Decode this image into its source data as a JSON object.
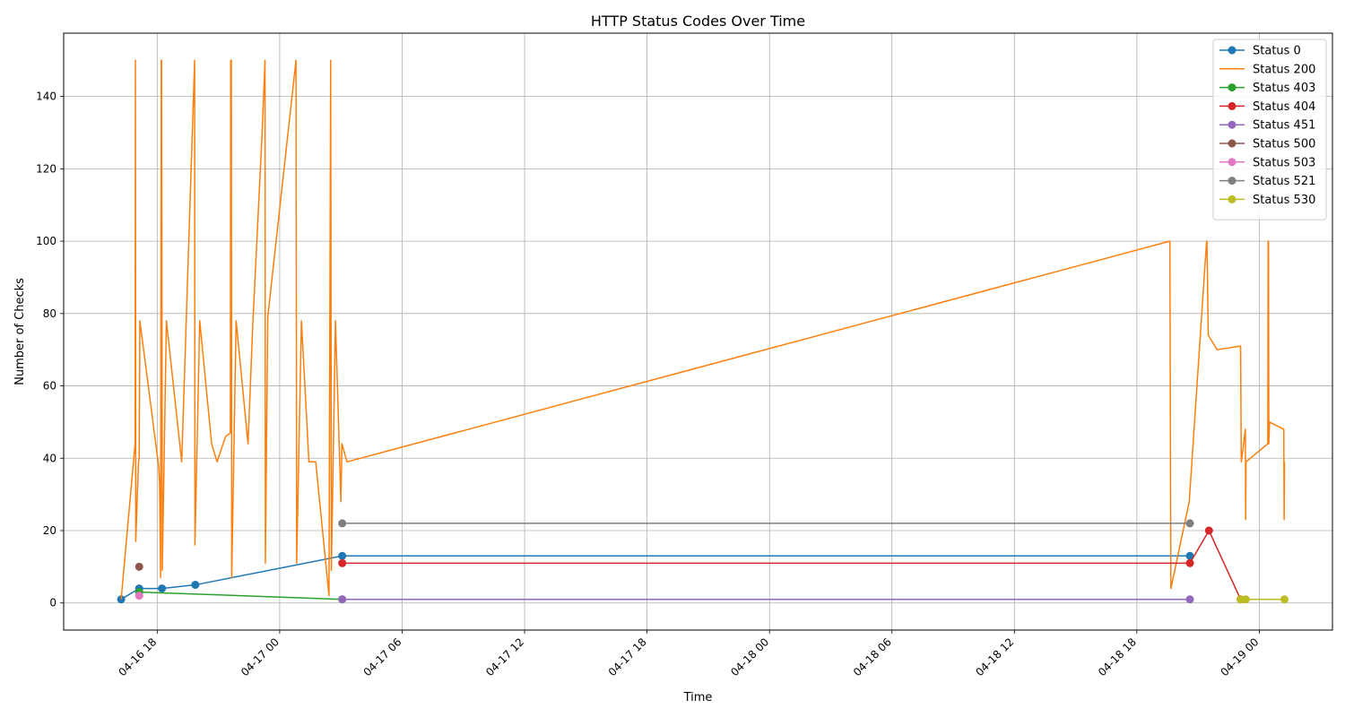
{
  "chart_data": {
    "type": "line",
    "title": "HTTP Status Codes Over Time",
    "xlabel": "Time",
    "ylabel": "Number of Checks",
    "grid": true,
    "legend_position": "top-right",
    "ylim": [
      -7.5,
      157.5
    ],
    "xlim": [
      "2025-04-16 13:25",
      "2025-04-19 03:35"
    ],
    "y_ticks": [
      0,
      20,
      40,
      60,
      80,
      100,
      120,
      140
    ],
    "x_ticks": [
      {
        "t": "2025-04-16 18:00",
        "label": "04-16 18"
      },
      {
        "t": "2025-04-17 00:00",
        "label": "04-17 00"
      },
      {
        "t": "2025-04-17 06:00",
        "label": "04-17 06"
      },
      {
        "t": "2025-04-17 12:00",
        "label": "04-17 12"
      },
      {
        "t": "2025-04-17 18:00",
        "label": "04-17 18"
      },
      {
        "t": "2025-04-18 00:00",
        "label": "04-18 00"
      },
      {
        "t": "2025-04-18 06:00",
        "label": "04-18 06"
      },
      {
        "t": "2025-04-18 12:00",
        "label": "04-18 12"
      },
      {
        "t": "2025-04-18 18:00",
        "label": "04-18 18"
      },
      {
        "t": "2025-04-19 00:00",
        "label": "04-19 00"
      }
    ],
    "series": [
      {
        "name": "Status 0",
        "color": "#1f77b4",
        "marker": true,
        "points": [
          [
            "2025-04-16 16:14",
            1
          ],
          [
            "2025-04-16 17:07",
            4
          ],
          [
            "2025-04-16 18:14",
            4
          ],
          [
            "2025-04-16 19:52",
            5
          ],
          [
            "2025-04-17 03:04",
            13
          ],
          [
            "2025-04-18 20:36",
            13
          ]
        ]
      },
      {
        "name": "Status 200",
        "color": "#ff7f0e",
        "marker": false,
        "points": [
          [
            "2025-04-16 16:14",
            1
          ],
          [
            "2025-04-16 16:55",
            44
          ],
          [
            "2025-04-16 16:56",
            150
          ],
          [
            "2025-04-16 16:57",
            17
          ],
          [
            "2025-04-16 17:05",
            39
          ],
          [
            "2025-04-16 17:07",
            40
          ],
          [
            "2025-04-16 17:09",
            78
          ],
          [
            "2025-04-16 18:04",
            38
          ],
          [
            "2025-04-16 18:07",
            33
          ],
          [
            "2025-04-16 18:10",
            7
          ],
          [
            "2025-04-16 18:12",
            150
          ],
          [
            "2025-04-16 18:13",
            150
          ],
          [
            "2025-04-16 18:15",
            9
          ],
          [
            "2025-04-16 18:27",
            78
          ],
          [
            "2025-04-16 19:12",
            39
          ],
          [
            "2025-04-16 19:50",
            150
          ],
          [
            "2025-04-16 19:51",
            16
          ],
          [
            "2025-04-16 20:05",
            78
          ],
          [
            "2025-04-16 20:40",
            44
          ],
          [
            "2025-04-16 20:56",
            39
          ],
          [
            "2025-04-16 21:21",
            46
          ],
          [
            "2025-04-16 21:35",
            47
          ],
          [
            "2025-04-16 21:36",
            150
          ],
          [
            "2025-04-16 21:38",
            150
          ],
          [
            "2025-04-16 21:39",
            7
          ],
          [
            "2025-04-16 21:52",
            78
          ],
          [
            "2025-04-16 22:27",
            44
          ],
          [
            "2025-04-16 22:41",
            77
          ],
          [
            "2025-04-16 23:08",
            129
          ],
          [
            "2025-04-16 23:17",
            150
          ],
          [
            "2025-04-16 23:18",
            11
          ],
          [
            "2025-04-16 23:25",
            79
          ],
          [
            "2025-04-17 00:48",
            150
          ],
          [
            "2025-04-17 00:50",
            11
          ],
          [
            "2025-04-17 01:04",
            78
          ],
          [
            "2025-04-17 01:26",
            39
          ],
          [
            "2025-04-17 01:46",
            39
          ],
          [
            "2025-04-17 02:25",
            2
          ],
          [
            "2025-04-17 02:30",
            150
          ],
          [
            "2025-04-17 02:32",
            9
          ],
          [
            "2025-04-17 02:44",
            78
          ],
          [
            "2025-04-17 03:00",
            28
          ],
          [
            "2025-04-17 03:03",
            44
          ],
          [
            "2025-04-17 03:18",
            39
          ],
          [
            "2025-04-18 19:37",
            100
          ],
          [
            "2025-04-18 19:40",
            4
          ],
          [
            "2025-04-18 20:34",
            28
          ],
          [
            "2025-04-18 21:25",
            100
          ],
          [
            "2025-04-18 21:26",
            100
          ],
          [
            "2025-04-18 21:30",
            74
          ],
          [
            "2025-04-18 21:56",
            70
          ],
          [
            "2025-04-18 23:05",
            71
          ],
          [
            "2025-04-18 23:07",
            39
          ],
          [
            "2025-04-18 23:10",
            41
          ],
          [
            "2025-04-18 23:19",
            48
          ],
          [
            "2025-04-18 23:20",
            23
          ],
          [
            "2025-04-18 23:21",
            39
          ],
          [
            "2025-04-19 00:25",
            44
          ],
          [
            "2025-04-19 00:26",
            100
          ],
          [
            "2025-04-19 00:27",
            100
          ],
          [
            "2025-04-19 00:28",
            44
          ],
          [
            "2025-04-19 00:30",
            50
          ],
          [
            "2025-04-19 01:12",
            48
          ],
          [
            "2025-04-19 01:13",
            23
          ],
          [
            "2025-04-19 01:14",
            39
          ]
        ]
      },
      {
        "name": "Status 403",
        "color": "#2ca02c",
        "marker": true,
        "points": [
          [
            "2025-04-16 17:07",
            3
          ],
          [
            "2025-04-17 03:04",
            1
          ]
        ]
      },
      {
        "name": "Status 404",
        "color": "#d62728",
        "marker": true,
        "points": [
          [
            "2025-04-17 03:04",
            11
          ],
          [
            "2025-04-18 20:36",
            11
          ],
          [
            "2025-04-18 21:32",
            20
          ],
          [
            "2025-04-18 23:05",
            1
          ]
        ]
      },
      {
        "name": "Status 451",
        "color": "#9467bd",
        "marker": true,
        "points": [
          [
            "2025-04-17 03:04",
            1
          ],
          [
            "2025-04-18 20:36",
            1
          ]
        ]
      },
      {
        "name": "Status 500",
        "color": "#8c564b",
        "marker": true,
        "points": [
          [
            "2025-04-16 17:07",
            10
          ]
        ]
      },
      {
        "name": "Status 503",
        "color": "#e377c2",
        "marker": true,
        "points": [
          [
            "2025-04-16 17:07",
            2
          ]
        ]
      },
      {
        "name": "Status 521",
        "color": "#7f7f7f",
        "marker": true,
        "points": [
          [
            "2025-04-17 03:04",
            22
          ],
          [
            "2025-04-18 20:36",
            22
          ]
        ]
      },
      {
        "name": "Status 530",
        "color": "#bcbd22",
        "marker": true,
        "points": [
          [
            "2025-04-18 23:05",
            1
          ],
          [
            "2025-04-18 23:20",
            1
          ],
          [
            "2025-04-19 01:14",
            1
          ]
        ]
      }
    ]
  }
}
